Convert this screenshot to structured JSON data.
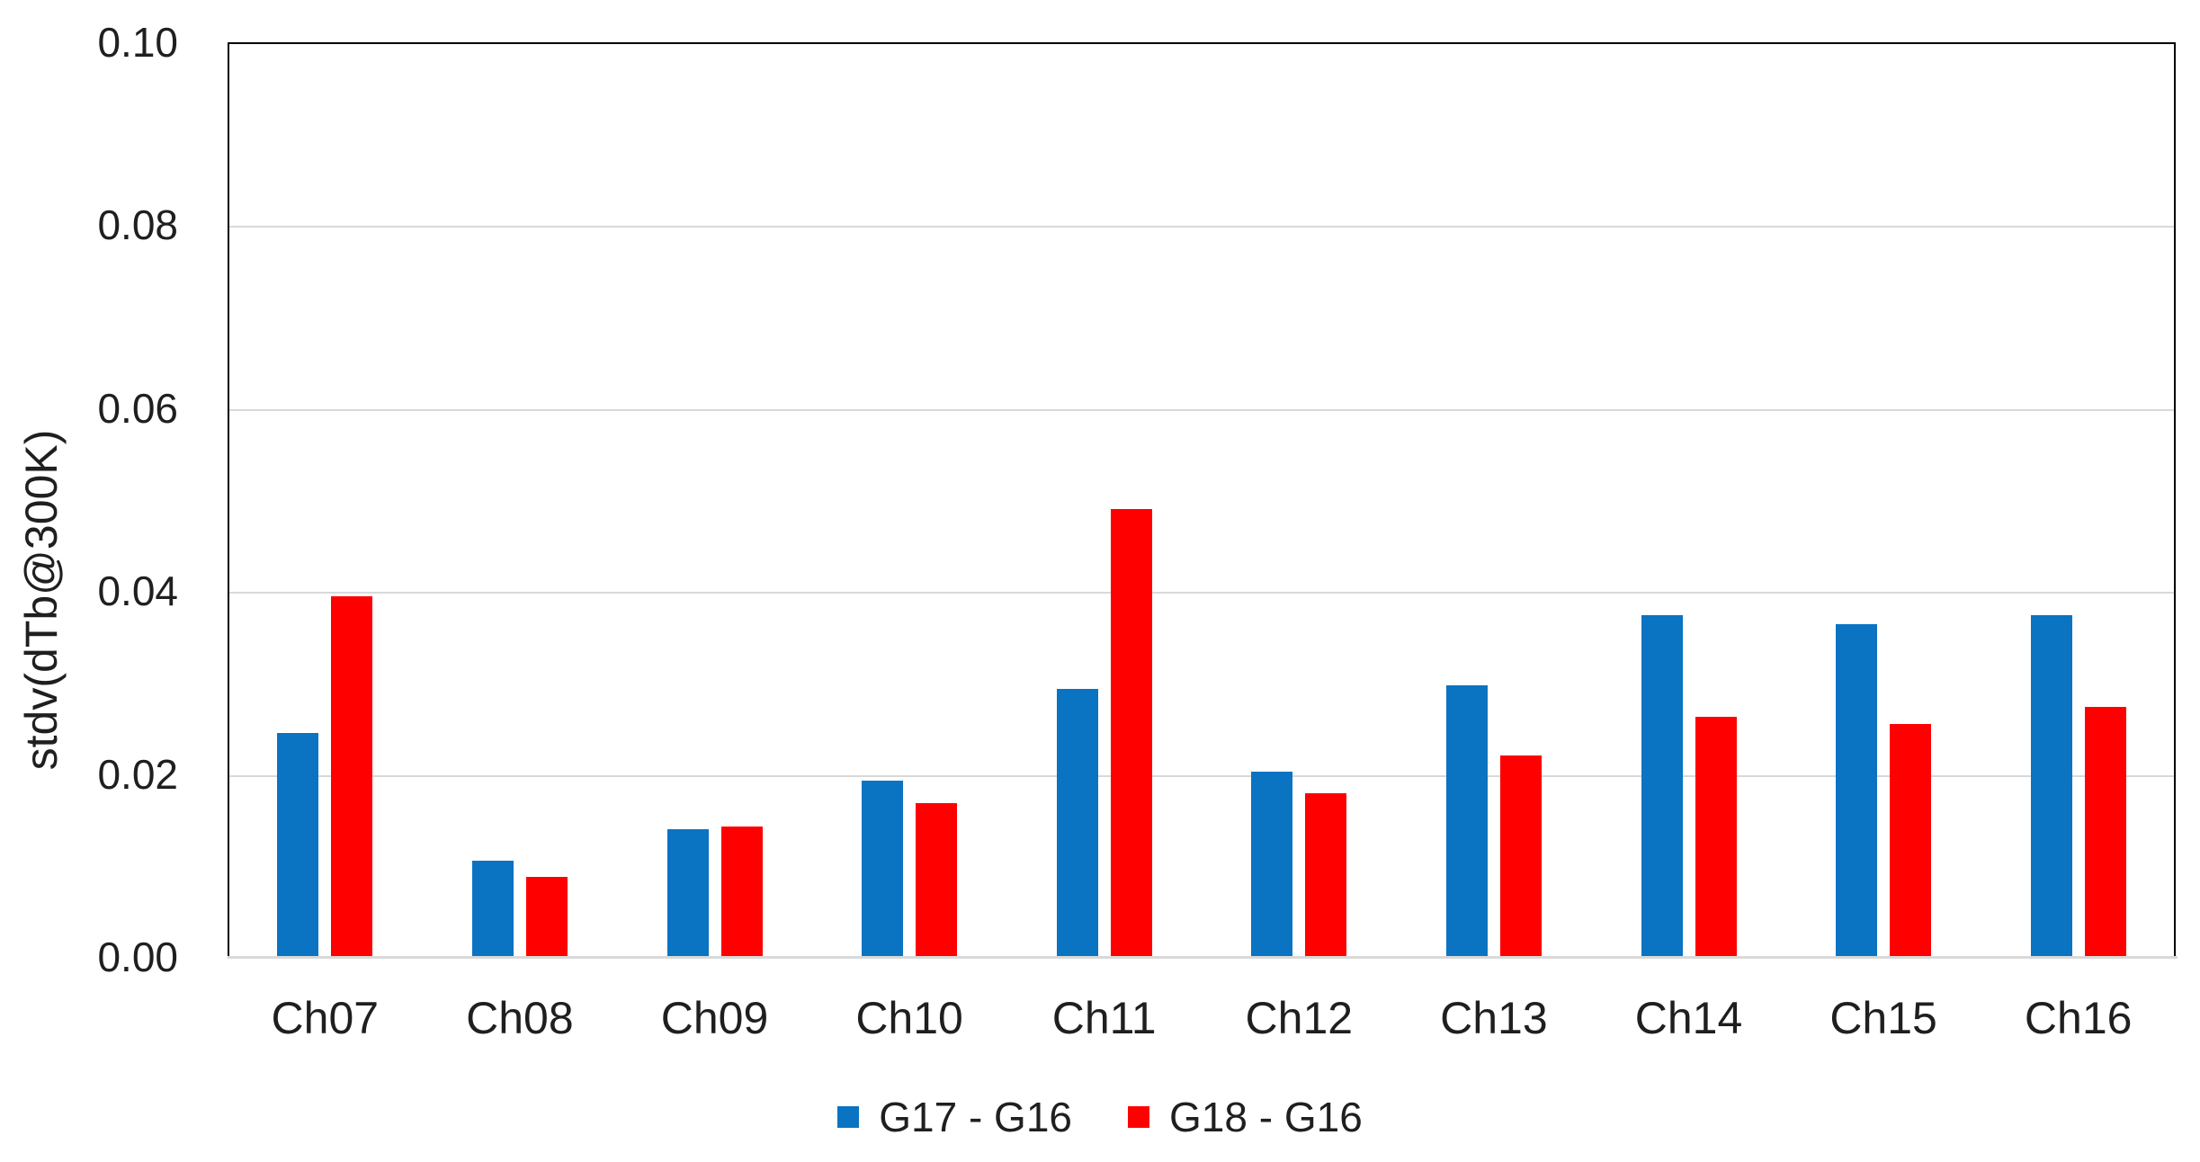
{
  "chart_data": {
    "type": "bar",
    "title": "",
    "ylabel": "stdv(dTb@300K)",
    "xlabel": "",
    "categories": [
      "Ch07",
      "Ch08",
      "Ch09",
      "Ch10",
      "Ch11",
      "Ch12",
      "Ch13",
      "Ch14",
      "Ch15",
      "Ch16"
    ],
    "series": [
      {
        "name": "G17 - G16",
        "color": "#0a73c2",
        "values": [
          0.0245,
          0.0105,
          0.014,
          0.0193,
          0.0293,
          0.0203,
          0.0297,
          0.0374,
          0.0364,
          0.0374
        ]
      },
      {
        "name": "G18 - G16",
        "color": "#ff0000",
        "values": [
          0.0394,
          0.0088,
          0.0143,
          0.0168,
          0.049,
          0.0179,
          0.022,
          0.0263,
          0.0255,
          0.0273
        ]
      }
    ],
    "ylim": [
      0,
      0.1
    ],
    "yticks": [
      {
        "value": 0.0,
        "label": "0.00"
      },
      {
        "value": 0.02,
        "label": "0.02"
      },
      {
        "value": 0.04,
        "label": "0.04"
      },
      {
        "value": 0.06,
        "label": "0.06"
      },
      {
        "value": 0.08,
        "label": "0.08"
      },
      {
        "value": 0.1,
        "label": "0.10"
      }
    ],
    "grid": true,
    "legend_position": "bottom"
  },
  "style": {
    "grid_color": "#d9d9d9",
    "axis_border_color": "#000000",
    "baseline_color": "#d9d9d9",
    "text_color": "#1f1f1f",
    "background": "#ffffff"
  }
}
